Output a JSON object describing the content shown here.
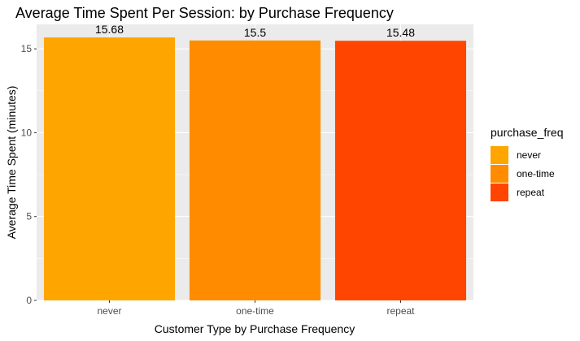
{
  "chart_data": {
    "type": "bar",
    "title": "Average Time Spent Per Session: by Purchase Frequency",
    "xlabel": "Customer Type by Purchase Frequency",
    "ylabel": "Average Time Spent (minutes)",
    "categories": [
      "never",
      "one-time",
      "repeat"
    ],
    "values": [
      15.68,
      15.5,
      15.48
    ],
    "data_labels": [
      "15.68",
      "15.5",
      "15.48"
    ],
    "colors": [
      "#FFA500",
      "#FF8C00",
      "#FF4500"
    ],
    "ylim": [
      0,
      16.46
    ],
    "yticks": [
      0,
      5,
      10,
      15
    ],
    "ytick_labels": [
      "0",
      "5",
      "10",
      "15"
    ],
    "grid": true,
    "panel_background": "#EBEBEB",
    "legend": {
      "title": "purchase_freq",
      "position": "right",
      "items": [
        "never",
        "one-time",
        "repeat"
      ]
    }
  }
}
